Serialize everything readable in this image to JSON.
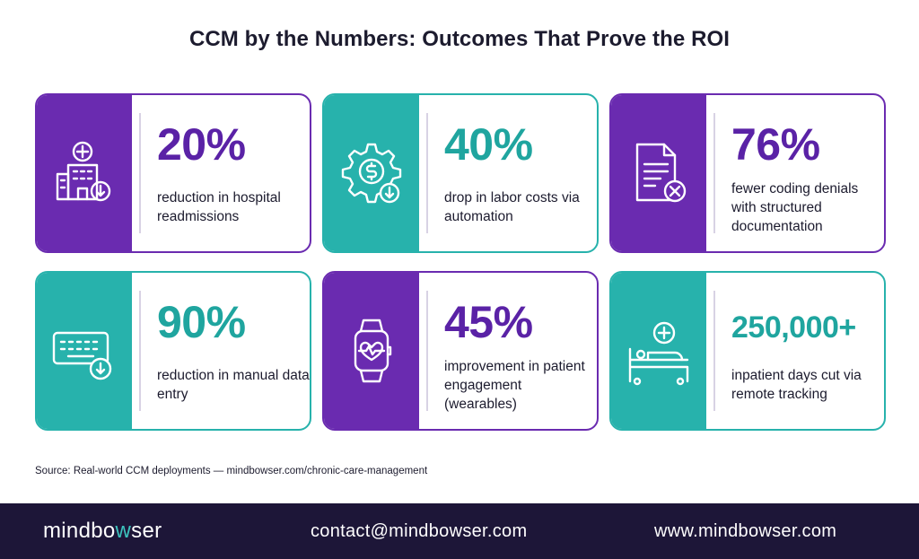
{
  "title": "CCM by the Numbers: Outcomes That Prove the ROI",
  "cards": [
    {
      "value": "20%",
      "desc": "reduction in hospital readmissions",
      "icon": "hospital-icon",
      "theme": "purple"
    },
    {
      "value": "40%",
      "desc": "drop in labor costs via automation",
      "icon": "dollar-gear-icon",
      "theme": "teal"
    },
    {
      "value": "76%",
      "desc": "fewer coding denials with structured documentation",
      "icon": "document-denied-icon",
      "theme": "purple"
    },
    {
      "value": "90%",
      "desc": "reduction in manual data entry",
      "icon": "keyboard-icon",
      "theme": "teal"
    },
    {
      "value": "45%",
      "desc": "improvement in patient engagement (wearables)",
      "icon": "smartwatch-heart-icon",
      "theme": "purple"
    },
    {
      "value": "250,000+",
      "desc": "inpatient days cut via remote tracking",
      "icon": "hospital-bed-icon",
      "theme": "teal"
    }
  ],
  "source": "Source: Real-world CCM deployments — mindbowser.com/chronic-care-management",
  "footer": {
    "brand_pre": "mindbo",
    "brand_accent": "w",
    "brand_post": "ser",
    "email": "contact@mindbowser.com",
    "website": "www.mindbowser.com"
  },
  "colors": {
    "purple": "#6a2bb0",
    "teal": "#27b2ac",
    "navy": "#1d1638"
  }
}
